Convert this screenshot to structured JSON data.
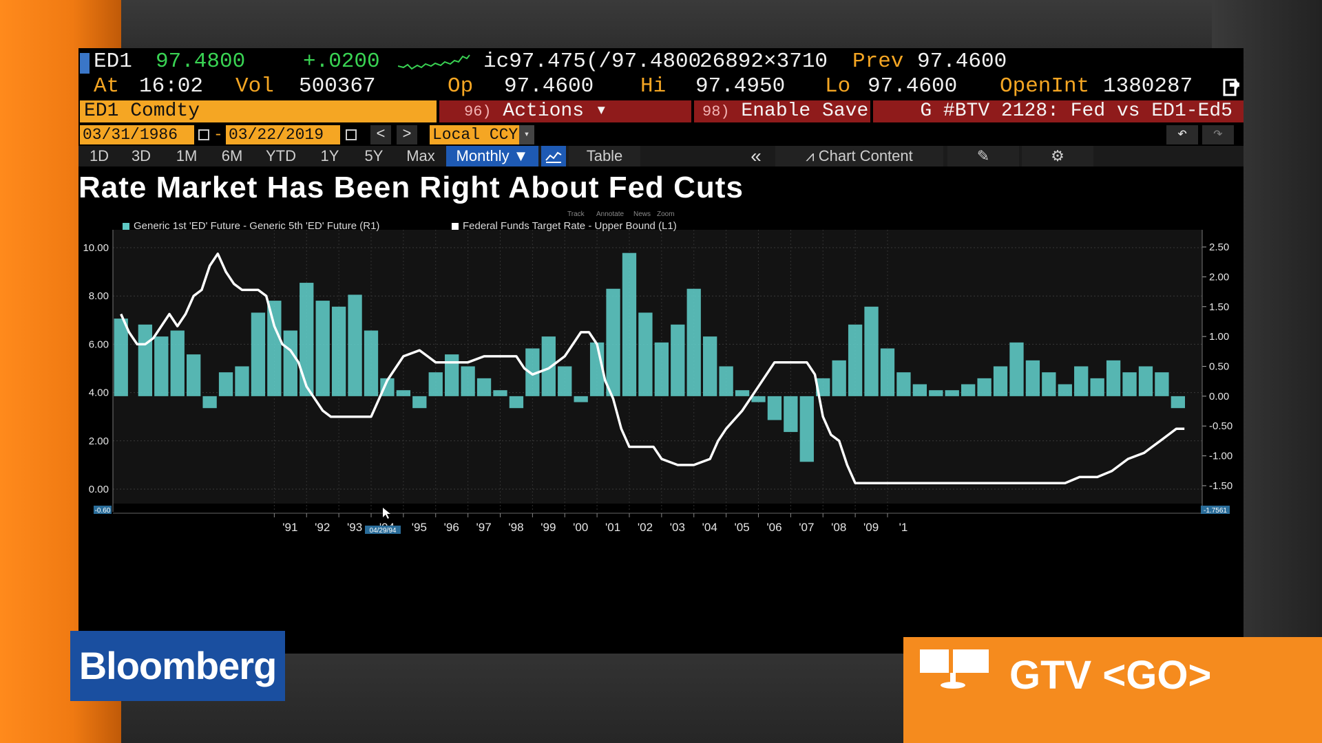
{
  "quote": {
    "ticker": "ED1",
    "last": "97.4800",
    "change": "+.0200",
    "bid_ask": "ic97.475(/97.4800",
    "size": "26892×3710",
    "prev_label": "Prev",
    "prev": "97.4600",
    "at_label": "At",
    "time": "16:02",
    "vol_label": "Vol",
    "vol": "500367",
    "op_label": "Op",
    "op": "97.4600",
    "hi_label": "Hi",
    "hi": "97.4950",
    "lo_label": "Lo",
    "lo": "97.4600",
    "openint_label": "OpenInt",
    "openint": "1380287"
  },
  "command": {
    "security": "ED1 Comdty",
    "actions_num": "96)",
    "actions_label": "Actions ▾",
    "save_num": "98)",
    "save_label": "Enable Save",
    "story": "G #BTV 2128: Fed vs ED1-Ed5"
  },
  "dates": {
    "start": "03/31/1986",
    "dash": "-",
    "end": "03/22/2019",
    "prev": "<",
    "next": ">",
    "currency": "Local CCY",
    "undo": "↶",
    "redo": "↷"
  },
  "toolbar": {
    "periods": [
      "1D",
      "3D",
      "1M",
      "6M",
      "YTD",
      "1Y",
      "5Y",
      "Max"
    ],
    "frequency": "Monthly ▼",
    "table": "Table",
    "collapse": "«",
    "chart_content": "Chart Content",
    "edit_icon": "edit-icon",
    "gear_icon": "gear-icon"
  },
  "overlay_tools": {
    "track": "Track",
    "annotate": "Annotate",
    "news": "News",
    "zoom": "Zoom"
  },
  "colors": {
    "amber": "#f5a623",
    "bar_teal": "#5ec9c4",
    "line_white": "#ffffff",
    "bloomberg_blue": "#1a4fa0",
    "gtv_orange": "#f58b1e"
  },
  "chart_data": {
    "type": "bar",
    "title": "Rate Market Has Been Right About Fed Cuts",
    "legend_placement": "top-left",
    "grid": true,
    "x_ticks": [
      "'91",
      "'92",
      "'93",
      "'94",
      "'95",
      "'96",
      "'97",
      "'98",
      "'99",
      "'00",
      "'01",
      "'02",
      "'03",
      "'04",
      "'05",
      "'06",
      "'07",
      "'08",
      "'09",
      "'1"
    ],
    "y_left_ticks": [
      "10.00",
      "8.00",
      "6.00",
      "4.00",
      "2.00",
      "0.00"
    ],
    "y_left_lim": [
      -0.6,
      10.4
    ],
    "y_right_ticks": [
      "2.50",
      "2.00",
      "1.50",
      "1.00",
      "0.50",
      "0.00",
      "-0.50",
      "-1.00",
      "-1.50"
    ],
    "y_right_lim": [
      -1.8,
      2.65
    ],
    "left_axis_min_label": "-0.60",
    "right_axis_min_label": "-1.7561",
    "cursor_date": "04/29/94",
    "series": [
      {
        "name": "Generic 1st 'ED' Future - Generic 5th 'ED' Future (R1)",
        "axis": "right",
        "type": "bar",
        "color": "#5ec9c4",
        "x": [
          1986.25,
          1987.0,
          1987.5,
          1988.0,
          1988.5,
          1989.0,
          1989.5,
          1990.0,
          1990.5,
          1991.0,
          1991.5,
          1992.0,
          1992.5,
          1993.0,
          1993.5,
          1994.0,
          1994.5,
          1995.0,
          1995.5,
          1996.0,
          1996.5,
          1997.0,
          1997.5,
          1998.0,
          1998.5,
          1999.0,
          1999.5,
          2000.0,
          2000.5,
          2001.0,
          2001.5,
          2002.0,
          2002.5,
          2003.0,
          2003.5,
          2004.0,
          2004.5,
          2005.0,
          2005.5,
          2006.0,
          2006.5,
          2007.0,
          2007.5,
          2008.0,
          2008.5,
          2009.0,
          2009.5,
          2010.0,
          2010.5,
          2011.0,
          2011.5,
          2012.0,
          2012.5,
          2013.0,
          2013.5,
          2014.0,
          2014.5,
          2015.0,
          2015.5,
          2016.0,
          2016.5,
          2017.0,
          2017.5,
          2018.0,
          2018.5,
          2019.0
        ],
        "values": [
          1.3,
          1.2,
          1.0,
          1.1,
          0.7,
          -0.2,
          0.4,
          0.5,
          1.4,
          1.6,
          1.1,
          1.9,
          1.6,
          1.5,
          1.7,
          1.1,
          0.3,
          0.1,
          -0.2,
          0.4,
          0.7,
          0.5,
          0.3,
          0.1,
          -0.2,
          0.8,
          1.0,
          0.5,
          -0.1,
          0.9,
          1.8,
          2.4,
          1.4,
          0.9,
          1.2,
          1.8,
          1.0,
          0.5,
          0.1,
          -0.1,
          -0.4,
          -0.6,
          -1.1,
          0.3,
          0.6,
          1.2,
          1.5,
          0.8,
          0.4,
          0.2,
          0.1,
          0.1,
          0.2,
          0.3,
          0.5,
          0.9,
          0.6,
          0.4,
          0.2,
          0.5,
          0.3,
          0.6,
          0.4,
          0.5,
          0.4,
          -0.2
        ]
      },
      {
        "name": "Federal Funds Target Rate - Upper Bound (L1)",
        "axis": "left",
        "type": "line",
        "color": "#ffffff",
        "x": [
          1986.25,
          1986.5,
          1986.75,
          1987.0,
          1987.25,
          1987.5,
          1987.75,
          1988.0,
          1988.25,
          1988.5,
          1988.75,
          1989.0,
          1989.25,
          1989.5,
          1989.75,
          1990.0,
          1990.5,
          1990.75,
          1991.0,
          1991.25,
          1991.5,
          1991.75,
          1992.0,
          1992.5,
          1992.75,
          1993.0,
          1993.5,
          1994.0,
          1994.25,
          1994.5,
          1994.75,
          1995.0,
          1995.5,
          1995.75,
          1996.0,
          1996.5,
          1997.0,
          1997.5,
          1998.0,
          1998.5,
          1998.75,
          1999.0,
          1999.5,
          1999.75,
          2000.0,
          2000.25,
          2000.5,
          2000.75,
          2001.0,
          2001.25,
          2001.5,
          2001.75,
          2002.0,
          2002.5,
          2002.75,
          2003.0,
          2003.5,
          2003.75,
          2004.0,
          2004.5,
          2004.75,
          2005.0,
          2005.5,
          2006.0,
          2006.5,
          2007.0,
          2007.5,
          2007.75,
          2008.0,
          2008.25,
          2008.5,
          2008.75,
          2009.0,
          2010.0,
          2012.0,
          2014.0,
          2015.5,
          2015.95,
          2016.5,
          2016.95,
          2017.2,
          2017.45,
          2017.95,
          2018.2,
          2018.45,
          2018.7,
          2018.95,
          2019.2
        ],
        "values": [
          7.25,
          6.5,
          6.0,
          6.0,
          6.25,
          6.75,
          7.25,
          6.75,
          7.25,
          8.0,
          8.25,
          9.25,
          9.75,
          9.0,
          8.5,
          8.25,
          8.25,
          8.0,
          6.75,
          6.0,
          5.75,
          5.25,
          4.25,
          3.25,
          3.0,
          3.0,
          3.0,
          3.0,
          3.75,
          4.5,
          5.0,
          5.5,
          5.75,
          5.5,
          5.25,
          5.25,
          5.25,
          5.5,
          5.5,
          5.5,
          5.0,
          4.75,
          5.0,
          5.25,
          5.5,
          6.0,
          6.5,
          6.5,
          6.0,
          4.5,
          3.75,
          2.5,
          1.75,
          1.75,
          1.75,
          1.25,
          1.0,
          1.0,
          1.0,
          1.25,
          2.0,
          2.5,
          3.25,
          4.25,
          5.25,
          5.25,
          5.25,
          4.75,
          3.0,
          2.25,
          2.0,
          1.0,
          0.25,
          0.25,
          0.25,
          0.25,
          0.25,
          0.5,
          0.5,
          0.75,
          1.0,
          1.25,
          1.5,
          1.75,
          2.0,
          2.25,
          2.5,
          2.5
        ]
      }
    ]
  }
}
